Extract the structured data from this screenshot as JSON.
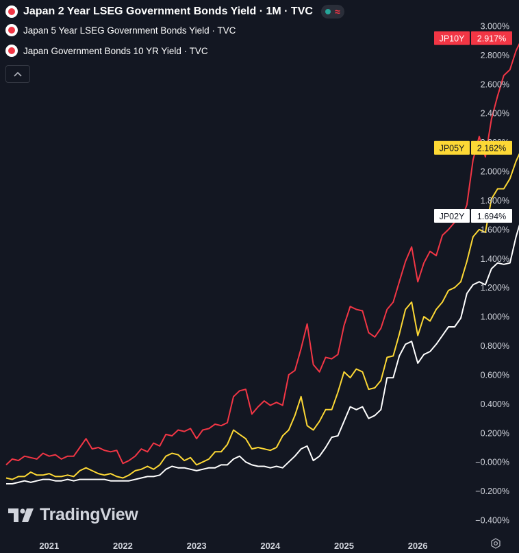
{
  "legend": [
    {
      "title": "Japan 2 Year LSEG Government Bonds Yield · 1M · TVC"
    },
    {
      "title": "Japan 5 Year LSEG Government Bonds Yield · TVC"
    },
    {
      "title": "Japan Government Bonds 10 YR Yield · TVC"
    }
  ],
  "brand": "TradingView",
  "icons": {
    "collapse": "chevron-up-icon",
    "settings": "gear-icon",
    "logo": "tradingview-logo-icon"
  },
  "colors": {
    "jp10y": "#f23645",
    "jp05y": "#fdd835",
    "jp02y": "#ffffff",
    "background": "#131722",
    "axis_text": "#d1d4dc"
  },
  "chart_data": {
    "type": "line",
    "x_ticks": [
      "2021",
      "2022",
      "2023",
      "2024",
      "2025",
      "2026"
    ],
    "y_ticks": [
      "3.000%",
      "2.800%",
      "2.600%",
      "2.400%",
      "2.200%",
      "2.000%",
      "1.800%",
      "1.600%",
      "1.400%",
      "1.200%",
      "1.000%",
      "0.800%",
      "0.600%",
      "0.400%",
      "0.200%",
      "−0.000%",
      "−0.200%",
      "−0.400%"
    ],
    "ylim": [
      -0.4,
      3.0
    ],
    "xlim": [
      "2020-05",
      "2026-07"
    ],
    "grid": false,
    "series": [
      {
        "name": "JP10Y",
        "color": "#f23645",
        "last_value": "2.917%",
        "start": "2020-06",
        "values": [
          -0.02,
          0.02,
          0.01,
          0.04,
          0.03,
          0.02,
          0.06,
          0.04,
          0.05,
          0.02,
          0.04,
          0.04,
          0.1,
          0.16,
          0.09,
          0.1,
          0.08,
          0.07,
          0.08,
          -0.01,
          0.01,
          0.04,
          0.09,
          0.07,
          0.13,
          0.11,
          0.19,
          0.18,
          0.22,
          0.21,
          0.23,
          0.16,
          0.22,
          0.23,
          0.26,
          0.25,
          0.27,
          0.45,
          0.49,
          0.5,
          0.33,
          0.38,
          0.42,
          0.39,
          0.41,
          0.39,
          0.6,
          0.63,
          0.78,
          0.95,
          0.67,
          0.62,
          0.72,
          0.71,
          0.74,
          0.94,
          1.07,
          1.05,
          1.04,
          0.89,
          0.86,
          0.92,
          1.05,
          1.1,
          1.24,
          1.38,
          1.48,
          1.24,
          1.37,
          1.45,
          1.42,
          1.56,
          1.6,
          1.65,
          1.66,
          1.77,
          2.08,
          2.24,
          2.1,
          2.36,
          2.52,
          2.66,
          2.7,
          2.83,
          2.917
        ]
      },
      {
        "name": "JP05Y",
        "color": "#fdd835",
        "last_value": "2.162%",
        "start": "2020-06",
        "values": [
          -0.11,
          -0.12,
          -0.1,
          -0.1,
          -0.07,
          -0.09,
          -0.09,
          -0.08,
          -0.1,
          -0.1,
          -0.09,
          -0.1,
          -0.06,
          -0.04,
          -0.06,
          -0.08,
          -0.09,
          -0.08,
          -0.1,
          -0.11,
          -0.09,
          -0.06,
          -0.05,
          -0.03,
          -0.05,
          -0.02,
          0.04,
          0.06,
          0.05,
          0.01,
          0.03,
          -0.02,
          0.0,
          0.02,
          0.07,
          0.07,
          0.12,
          0.22,
          0.19,
          0.16,
          0.09,
          0.1,
          0.09,
          0.08,
          0.1,
          0.18,
          0.22,
          0.32,
          0.45,
          0.25,
          0.22,
          0.28,
          0.36,
          0.36,
          0.48,
          0.62,
          0.58,
          0.64,
          0.62,
          0.5,
          0.51,
          0.56,
          0.72,
          0.73,
          0.88,
          1.05,
          1.1,
          0.87,
          1.0,
          0.97,
          1.05,
          1.1,
          1.18,
          1.2,
          1.24,
          1.38,
          1.55,
          1.6,
          1.58,
          1.81,
          1.88,
          1.88,
          1.95,
          2.07,
          2.162
        ]
      },
      {
        "name": "JP02Y",
        "color": "#ffffff",
        "last_value": "1.694%",
        "start": "2020-06",
        "values": [
          -0.15,
          -0.15,
          -0.14,
          -0.13,
          -0.14,
          -0.13,
          -0.12,
          -0.12,
          -0.13,
          -0.13,
          -0.12,
          -0.13,
          -0.12,
          -0.12,
          -0.12,
          -0.12,
          -0.12,
          -0.13,
          -0.13,
          -0.13,
          -0.13,
          -0.12,
          -0.11,
          -0.1,
          -0.1,
          -0.09,
          -0.05,
          -0.03,
          -0.04,
          -0.04,
          -0.05,
          -0.06,
          -0.05,
          -0.04,
          -0.04,
          -0.02,
          -0.02,
          0.02,
          0.04,
          0.0,
          -0.02,
          -0.03,
          -0.03,
          -0.04,
          -0.03,
          -0.04,
          0.0,
          0.04,
          0.09,
          0.11,
          0.01,
          0.04,
          0.1,
          0.17,
          0.18,
          0.28,
          0.38,
          0.36,
          0.38,
          0.3,
          0.32,
          0.36,
          0.58,
          0.58,
          0.73,
          0.81,
          0.83,
          0.68,
          0.74,
          0.76,
          0.81,
          0.87,
          0.93,
          0.93,
          0.99,
          1.16,
          1.22,
          1.24,
          1.22,
          1.33,
          1.37,
          1.36,
          1.37,
          1.55,
          1.694
        ]
      }
    ]
  }
}
